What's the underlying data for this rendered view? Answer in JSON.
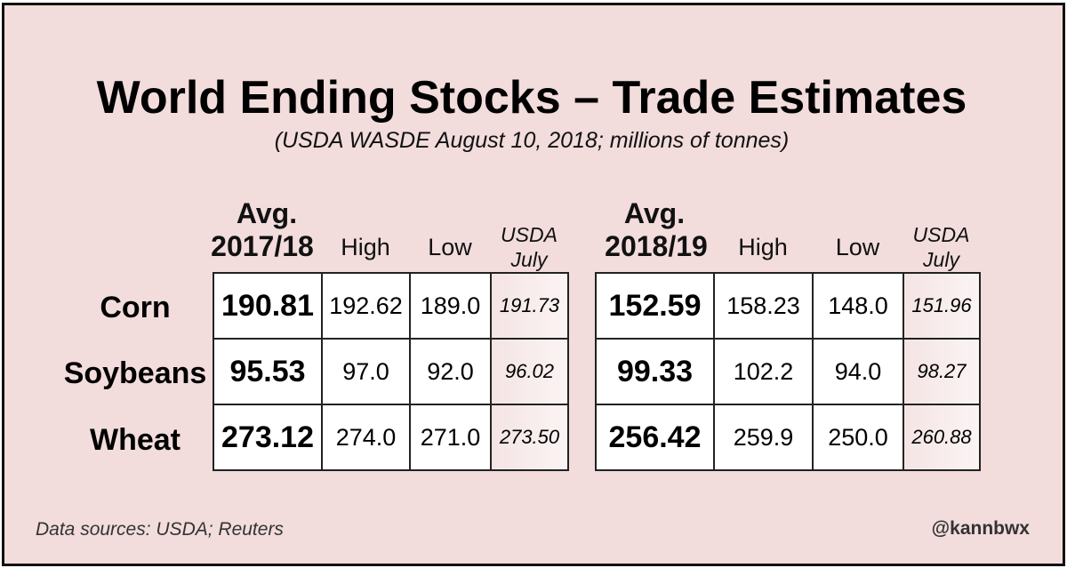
{
  "chart_data": {
    "type": "table",
    "title": "World Ending Stocks – Trade Estimates",
    "subtitle": "(USDA WASDE August 10, 2018; millions of tonnes)",
    "rows": [
      "Corn",
      "Soybeans",
      "Wheat"
    ],
    "groups": [
      {
        "avg_label": "Avg.",
        "season": "2017/18",
        "columns": [
          "High",
          "Low"
        ],
        "usda_label": "USDA",
        "usda_sublabel": "July",
        "values": [
          [
            "190.81",
            "192.62",
            "189.0",
            "191.73"
          ],
          [
            "95.53",
            "97.0",
            "92.0",
            "96.02"
          ],
          [
            "273.12",
            "274.0",
            "271.0",
            "273.50"
          ]
        ]
      },
      {
        "avg_label": "Avg.",
        "season": "2018/19",
        "columns": [
          "High",
          "Low"
        ],
        "usda_label": "USDA",
        "usda_sublabel": "July",
        "values": [
          [
            "152.59",
            "158.23",
            "148.0",
            "151.96"
          ],
          [
            "99.33",
            "102.2",
            "94.0",
            "98.27"
          ],
          [
            "256.42",
            "259.9",
            "250.0",
            "260.88"
          ]
        ]
      }
    ]
  },
  "footer": {
    "source": "Data sources: USDA; Reuters",
    "handle": "@kannbwx"
  }
}
